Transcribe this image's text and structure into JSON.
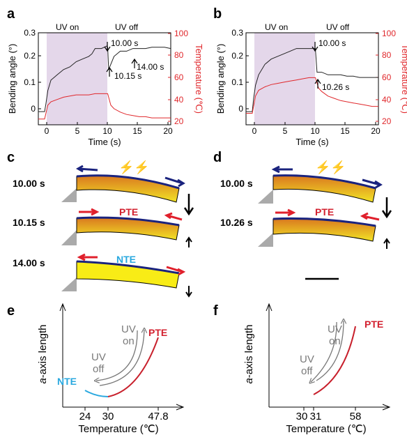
{
  "panels": {
    "a": {
      "label": "a",
      "uv_on": "UV on",
      "uv_off": "UV off",
      "ann_top": "10.00 s",
      "ann_mid": "10.15 s",
      "ann_right": "14.00 s",
      "ylabel": "Bending angle (°)",
      "ylabel_right": "Temperature (℃)",
      "xlabel": "Time (s)",
      "xticks": [
        "0",
        "5",
        "10",
        "15",
        "20"
      ],
      "yticks": [
        "0",
        "0.1",
        "0.2",
        "0.3"
      ],
      "yticks_right": [
        "20",
        "40",
        "60",
        "80",
        "100"
      ]
    },
    "b": {
      "label": "b",
      "uv_on": "UV on",
      "uv_off": "UV off",
      "ann_top": "10.00 s",
      "ann_mid": "10.26 s",
      "ylabel": "Bending angle (°)",
      "ylabel_right": "Temperature (℃)",
      "xlabel": "Time (s)",
      "xticks": [
        "0",
        "5",
        "10",
        "15",
        "20"
      ],
      "yticks": [
        "0",
        "0.1",
        "0.2",
        "0.3"
      ],
      "yticks_right": [
        "20",
        "40",
        "60",
        "80",
        "100"
      ]
    },
    "c": {
      "label": "c",
      "time1": "10.00 s",
      "time2": "10.15 s",
      "time3": "14.00 s",
      "pte": "PTE",
      "nte": "NTE",
      "bolt": "⚡⚡"
    },
    "d": {
      "label": "d",
      "time1": "10.00 s",
      "time2": "10.26 s",
      "pte": "PTE",
      "bolt": "⚡⚡"
    },
    "e": {
      "label": "e",
      "ylabel": "a-axis length",
      "ylabel_italic": "a",
      "ylabel_rest": "-axis length",
      "xlabel": "Temperature (℃)",
      "xticks": [
        "24",
        "30",
        "47.8"
      ],
      "pte": "PTE",
      "nte": "NTE",
      "uv_on_1": "UV",
      "uv_on_2": "on",
      "uv_off_1": "UV",
      "uv_off_2": "off"
    },
    "f": {
      "label": "f",
      "ylabel_italic": "a",
      "ylabel_rest": "-axis length",
      "xlabel": "Temperature (℃)",
      "xticks": [
        "30",
        "31",
        "58"
      ],
      "pte": "PTE",
      "uv_on_1": "UV",
      "uv_on_2": "on",
      "uv_off_1": "UV",
      "uv_off_2": "off"
    }
  },
  "chart_data": [
    {
      "panel": "a",
      "type": "line",
      "xlabel": "Time (s)",
      "ylabel": "Bending angle (°)",
      "ylabel_right": "Temperature (℃)",
      "xlim": [
        -1,
        20
      ],
      "ylim": [
        -0.05,
        0.3
      ],
      "ylim_right": [
        20,
        100
      ],
      "shaded_interval": [
        0,
        10
      ],
      "series": [
        {
          "axis": "left",
          "x": [
            -1,
            0,
            0.2,
            0.5,
            1,
            1.5,
            2,
            3,
            4,
            5,
            6,
            7,
            7.5,
            8,
            9,
            9.9,
            10.0,
            10.15,
            11,
            12,
            13,
            14,
            15,
            16,
            17,
            18,
            19,
            20
          ],
          "values": [
            0,
            0,
            0.03,
            0.08,
            0.12,
            0.13,
            0.14,
            0.16,
            0.17,
            0.19,
            0.2,
            0.21,
            0.22,
            0.24,
            0.24,
            0.25,
            0.245,
            0.16,
            0.21,
            0.23,
            0.23,
            0.24,
            0.24,
            0.24,
            0.245,
            0.245,
            0.245,
            0.24
          ]
        },
        {
          "axis": "right",
          "x": [
            -1,
            0,
            0.5,
            1,
            2,
            3,
            4,
            5,
            6,
            7,
            8,
            9,
            10,
            10.5,
            11,
            12,
            13,
            14,
            15,
            16,
            17,
            18,
            19,
            20
          ],
          "values": [
            25,
            25,
            37,
            40,
            42,
            44,
            45,
            46,
            46,
            46,
            47,
            47,
            47,
            37,
            34,
            31,
            29,
            28,
            27,
            27,
            26,
            26,
            26,
            26
          ]
        }
      ]
    },
    {
      "panel": "b",
      "type": "line",
      "xlabel": "Time (s)",
      "ylabel": "Bending angle (°)",
      "ylabel_right": "Temperature (℃)",
      "xlim": [
        -1,
        20
      ],
      "ylim": [
        -0.05,
        0.3
      ],
      "ylim_right": [
        20,
        100
      ],
      "shaded_interval": [
        0,
        10
      ],
      "series": [
        {
          "axis": "left",
          "x": [
            -1,
            0,
            0.2,
            0.5,
            1,
            2,
            3,
            4,
            5,
            6,
            7,
            8,
            9,
            9.9,
            10.0,
            10.26,
            11,
            12,
            13,
            14,
            15,
            16,
            17,
            18,
            19,
            20
          ],
          "values": [
            0,
            0,
            0.05,
            0.1,
            0.14,
            0.18,
            0.2,
            0.21,
            0.22,
            0.23,
            0.24,
            0.24,
            0.24,
            0.24,
            0.24,
            0.15,
            0.15,
            0.14,
            0.14,
            0.14,
            0.135,
            0.135,
            0.13,
            0.13,
            0.13,
            0.13
          ]
        },
        {
          "axis": "right",
          "x": [
            -1,
            0,
            0.5,
            1,
            2,
            3,
            4,
            5,
            6,
            7,
            8,
            9,
            10,
            10.5,
            11,
            12,
            13,
            14,
            15,
            16,
            17,
            18,
            19,
            20
          ],
          "values": [
            30,
            30,
            45,
            50,
            53,
            55,
            56,
            57,
            58,
            59,
            60,
            61,
            61,
            52,
            49,
            45,
            43,
            41,
            40,
            39,
            38,
            37,
            36,
            36
          ]
        }
      ]
    }
  ]
}
